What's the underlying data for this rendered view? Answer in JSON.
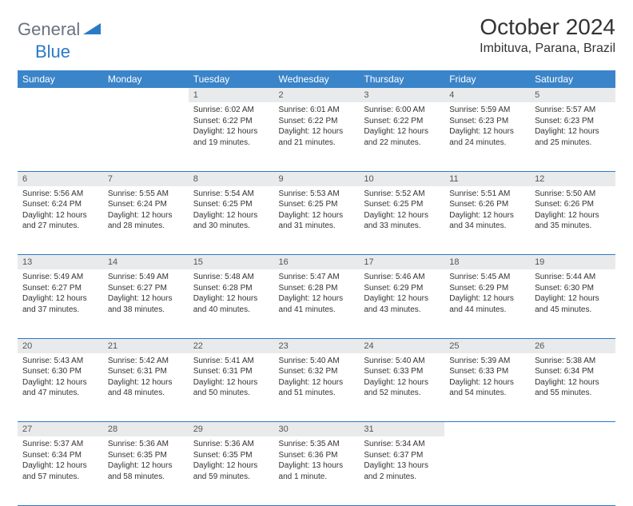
{
  "logo": {
    "part1": "General",
    "part2": "Blue"
  },
  "title": "October 2024",
  "location": "Imbituva, Parana, Brazil",
  "colors": {
    "header_bg": "#3a84c9",
    "row_border": "#2b7ac7",
    "daynum_bg": "#e9eaeb",
    "logo_gray": "#6b7280",
    "logo_blue": "#2b7ac7"
  },
  "day_headers": [
    "Sunday",
    "Monday",
    "Tuesday",
    "Wednesday",
    "Thursday",
    "Friday",
    "Saturday"
  ],
  "weeks": [
    [
      null,
      null,
      {
        "n": "1",
        "sr": "Sunrise: 6:02 AM",
        "ss": "Sunset: 6:22 PM",
        "dl": "Daylight: 12 hours and 19 minutes."
      },
      {
        "n": "2",
        "sr": "Sunrise: 6:01 AM",
        "ss": "Sunset: 6:22 PM",
        "dl": "Daylight: 12 hours and 21 minutes."
      },
      {
        "n": "3",
        "sr": "Sunrise: 6:00 AM",
        "ss": "Sunset: 6:22 PM",
        "dl": "Daylight: 12 hours and 22 minutes."
      },
      {
        "n": "4",
        "sr": "Sunrise: 5:59 AM",
        "ss": "Sunset: 6:23 PM",
        "dl": "Daylight: 12 hours and 24 minutes."
      },
      {
        "n": "5",
        "sr": "Sunrise: 5:57 AM",
        "ss": "Sunset: 6:23 PM",
        "dl": "Daylight: 12 hours and 25 minutes."
      }
    ],
    [
      {
        "n": "6",
        "sr": "Sunrise: 5:56 AM",
        "ss": "Sunset: 6:24 PM",
        "dl": "Daylight: 12 hours and 27 minutes."
      },
      {
        "n": "7",
        "sr": "Sunrise: 5:55 AM",
        "ss": "Sunset: 6:24 PM",
        "dl": "Daylight: 12 hours and 28 minutes."
      },
      {
        "n": "8",
        "sr": "Sunrise: 5:54 AM",
        "ss": "Sunset: 6:25 PM",
        "dl": "Daylight: 12 hours and 30 minutes."
      },
      {
        "n": "9",
        "sr": "Sunrise: 5:53 AM",
        "ss": "Sunset: 6:25 PM",
        "dl": "Daylight: 12 hours and 31 minutes."
      },
      {
        "n": "10",
        "sr": "Sunrise: 5:52 AM",
        "ss": "Sunset: 6:25 PM",
        "dl": "Daylight: 12 hours and 33 minutes."
      },
      {
        "n": "11",
        "sr": "Sunrise: 5:51 AM",
        "ss": "Sunset: 6:26 PM",
        "dl": "Daylight: 12 hours and 34 minutes."
      },
      {
        "n": "12",
        "sr": "Sunrise: 5:50 AM",
        "ss": "Sunset: 6:26 PM",
        "dl": "Daylight: 12 hours and 35 minutes."
      }
    ],
    [
      {
        "n": "13",
        "sr": "Sunrise: 5:49 AM",
        "ss": "Sunset: 6:27 PM",
        "dl": "Daylight: 12 hours and 37 minutes."
      },
      {
        "n": "14",
        "sr": "Sunrise: 5:49 AM",
        "ss": "Sunset: 6:27 PM",
        "dl": "Daylight: 12 hours and 38 minutes."
      },
      {
        "n": "15",
        "sr": "Sunrise: 5:48 AM",
        "ss": "Sunset: 6:28 PM",
        "dl": "Daylight: 12 hours and 40 minutes."
      },
      {
        "n": "16",
        "sr": "Sunrise: 5:47 AM",
        "ss": "Sunset: 6:28 PM",
        "dl": "Daylight: 12 hours and 41 minutes."
      },
      {
        "n": "17",
        "sr": "Sunrise: 5:46 AM",
        "ss": "Sunset: 6:29 PM",
        "dl": "Daylight: 12 hours and 43 minutes."
      },
      {
        "n": "18",
        "sr": "Sunrise: 5:45 AM",
        "ss": "Sunset: 6:29 PM",
        "dl": "Daylight: 12 hours and 44 minutes."
      },
      {
        "n": "19",
        "sr": "Sunrise: 5:44 AM",
        "ss": "Sunset: 6:30 PM",
        "dl": "Daylight: 12 hours and 45 minutes."
      }
    ],
    [
      {
        "n": "20",
        "sr": "Sunrise: 5:43 AM",
        "ss": "Sunset: 6:30 PM",
        "dl": "Daylight: 12 hours and 47 minutes."
      },
      {
        "n": "21",
        "sr": "Sunrise: 5:42 AM",
        "ss": "Sunset: 6:31 PM",
        "dl": "Daylight: 12 hours and 48 minutes."
      },
      {
        "n": "22",
        "sr": "Sunrise: 5:41 AM",
        "ss": "Sunset: 6:31 PM",
        "dl": "Daylight: 12 hours and 50 minutes."
      },
      {
        "n": "23",
        "sr": "Sunrise: 5:40 AM",
        "ss": "Sunset: 6:32 PM",
        "dl": "Daylight: 12 hours and 51 minutes."
      },
      {
        "n": "24",
        "sr": "Sunrise: 5:40 AM",
        "ss": "Sunset: 6:33 PM",
        "dl": "Daylight: 12 hours and 52 minutes."
      },
      {
        "n": "25",
        "sr": "Sunrise: 5:39 AM",
        "ss": "Sunset: 6:33 PM",
        "dl": "Daylight: 12 hours and 54 minutes."
      },
      {
        "n": "26",
        "sr": "Sunrise: 5:38 AM",
        "ss": "Sunset: 6:34 PM",
        "dl": "Daylight: 12 hours and 55 minutes."
      }
    ],
    [
      {
        "n": "27",
        "sr": "Sunrise: 5:37 AM",
        "ss": "Sunset: 6:34 PM",
        "dl": "Daylight: 12 hours and 57 minutes."
      },
      {
        "n": "28",
        "sr": "Sunrise: 5:36 AM",
        "ss": "Sunset: 6:35 PM",
        "dl": "Daylight: 12 hours and 58 minutes."
      },
      {
        "n": "29",
        "sr": "Sunrise: 5:36 AM",
        "ss": "Sunset: 6:35 PM",
        "dl": "Daylight: 12 hours and 59 minutes."
      },
      {
        "n": "30",
        "sr": "Sunrise: 5:35 AM",
        "ss": "Sunset: 6:36 PM",
        "dl": "Daylight: 13 hours and 1 minute."
      },
      {
        "n": "31",
        "sr": "Sunrise: 5:34 AM",
        "ss": "Sunset: 6:37 PM",
        "dl": "Daylight: 13 hours and 2 minutes."
      },
      null,
      null
    ]
  ]
}
